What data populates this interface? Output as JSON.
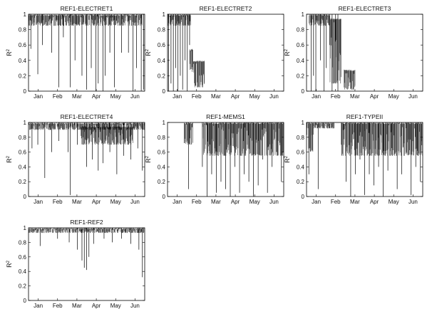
{
  "chart_data": [
    {
      "type": "line",
      "title": "REF1-ELECTRET1",
      "ylabel": "R",
      "ylabel_sup": "2",
      "ylim": [
        0,
        1
      ],
      "yticks": [
        "0",
        "0.2",
        "0.4",
        "0.6",
        "0.8",
        "1"
      ],
      "xticks": [
        "Jan",
        "Feb",
        "Mar",
        "Apr",
        "May",
        "Jun"
      ],
      "series_color": "#000000",
      "spikes": [
        [
          0.02,
          0.55
        ],
        [
          0.08,
          0.22
        ],
        [
          0.12,
          0.6
        ],
        [
          0.2,
          0.5
        ],
        [
          0.26,
          0.05
        ],
        [
          0.3,
          0.7
        ],
        [
          0.36,
          0.05
        ],
        [
          0.4,
          0.4
        ],
        [
          0.46,
          0.2
        ],
        [
          0.5,
          0.02
        ],
        [
          0.54,
          0.3
        ],
        [
          0.58,
          0.0
        ],
        [
          0.6,
          0.1
        ],
        [
          0.64,
          0.0
        ],
        [
          0.66,
          0.2
        ],
        [
          0.7,
          0.5
        ],
        [
          0.74,
          0.05
        ],
        [
          0.8,
          0.5
        ],
        [
          0.86,
          0.5
        ],
        [
          0.9,
          0.0
        ],
        [
          0.93,
          0.3
        ],
        [
          0.97,
          0.0
        ],
        [
          0.99,
          0.02
        ]
      ],
      "segments": [
        [
          0.0,
          0.98,
          0.85,
          1.0
        ]
      ],
      "gaps": []
    },
    {
      "type": "line",
      "title": "REF1-ELECTRET2",
      "ylabel": "R",
      "ylabel_sup": "2",
      "ylim": [
        0,
        1
      ],
      "yticks": [
        "0",
        "0.2",
        "0.4",
        "0.6",
        "0.8",
        "1"
      ],
      "xticks": [
        "Jan",
        "Feb",
        "Mar",
        "Apr",
        "May",
        "Jun"
      ],
      "series_color": "#000000",
      "spikes": [
        [
          0.01,
          0.0
        ],
        [
          0.03,
          0.1
        ],
        [
          0.05,
          0.0
        ],
        [
          0.07,
          0.3
        ],
        [
          0.09,
          0.0
        ],
        [
          0.11,
          0.2
        ],
        [
          0.13,
          0.02
        ],
        [
          0.15,
          0.4
        ],
        [
          0.17,
          0.0
        ],
        [
          0.19,
          0.6
        ]
      ],
      "segments": [
        [
          0.0,
          0.2,
          0.85,
          1.0
        ],
        [
          0.19,
          0.22,
          0.25,
          0.55
        ],
        [
          0.22,
          0.32,
          0.05,
          0.4
        ]
      ],
      "gaps": []
    },
    {
      "type": "line",
      "title": "REF1-ELECTRET3",
      "ylabel": "R",
      "ylabel_sup": "2",
      "ylim": [
        0,
        1
      ],
      "yticks": [
        "0",
        "0.2",
        "0.4",
        "0.6",
        "0.8",
        "1"
      ],
      "xticks": [
        "Jan",
        "Feb",
        "Mar",
        "Apr",
        "May",
        "Jun"
      ],
      "series_color": "#000000",
      "spikes": [
        [
          0.04,
          0.0
        ],
        [
          0.06,
          0.2
        ],
        [
          0.08,
          0.0
        ],
        [
          0.12,
          0.4
        ],
        [
          0.15,
          0.0
        ],
        [
          0.17,
          0.3
        ],
        [
          0.2,
          0.6
        ],
        [
          0.22,
          0.0
        ],
        [
          0.25,
          0.1
        ],
        [
          0.27,
          0.0
        ]
      ],
      "segments": [
        [
          0.02,
          0.2,
          0.85,
          1.0
        ],
        [
          0.2,
          0.3,
          0.1,
          0.95
        ],
        [
          0.32,
          0.42,
          0.02,
          0.28
        ]
      ],
      "gaps": []
    },
    {
      "type": "line",
      "title": "REF1-ELECTRET4",
      "ylabel": "R",
      "ylabel_sup": "2",
      "ylim": [
        0,
        1
      ],
      "yticks": [
        "0",
        "0.2",
        "0.4",
        "0.6",
        "0.8",
        "1"
      ],
      "xticks": [
        "Jan",
        "Feb",
        "Mar",
        "Apr",
        "May",
        "Jun"
      ],
      "series_color": "#000000",
      "spikes": [
        [
          0.03,
          0.65
        ],
        [
          0.08,
          0.7
        ],
        [
          0.14,
          0.25
        ],
        [
          0.2,
          0.6
        ],
        [
          0.26,
          0.75
        ],
        [
          0.34,
          0.6
        ],
        [
          0.36,
          0.02
        ],
        [
          0.42,
          0.7
        ],
        [
          0.5,
          0.4
        ],
        [
          0.55,
          0.5
        ],
        [
          0.6,
          0.35
        ],
        [
          0.64,
          0.45
        ],
        [
          0.7,
          0.6
        ],
        [
          0.76,
          0.3
        ],
        [
          0.82,
          0.55
        ],
        [
          0.88,
          0.5
        ],
        [
          0.94,
          0.65
        ],
        [
          0.98,
          0.35
        ]
      ],
      "segments": [
        [
          0.0,
          1.0,
          0.9,
          1.0
        ],
        [
          0.45,
          0.9,
          0.7,
          0.95
        ]
      ],
      "gaps": []
    },
    {
      "type": "line",
      "title": "REF1-MEMS1",
      "ylabel": "R",
      "ylabel_sup": "2",
      "ylim": [
        0,
        1
      ],
      "yticks": [
        "0",
        "0.2",
        "0.4",
        "0.6",
        "0.8",
        "1"
      ],
      "xticks": [
        "Jan",
        "Feb",
        "Mar",
        "Apr",
        "May",
        "Jun"
      ],
      "series_color": "#000000",
      "spikes": [
        [
          0.18,
          0.1
        ],
        [
          0.3,
          0.4
        ],
        [
          0.34,
          0.0
        ],
        [
          0.38,
          0.3
        ],
        [
          0.42,
          0.05
        ],
        [
          0.46,
          0.2
        ],
        [
          0.5,
          0.1
        ],
        [
          0.54,
          0.0
        ],
        [
          0.58,
          0.4
        ],
        [
          0.62,
          0.05
        ],
        [
          0.66,
          0.3
        ],
        [
          0.7,
          0.2
        ],
        [
          0.74,
          0.0
        ],
        [
          0.78,
          0.15
        ],
        [
          0.82,
          0.5
        ],
        [
          0.86,
          0.05
        ],
        [
          0.9,
          0.4
        ],
        [
          0.94,
          0.6
        ],
        [
          0.98,
          0.2
        ]
      ],
      "segments": [
        [
          0.14,
          0.22,
          0.7,
          1.0
        ],
        [
          0.3,
          1.0,
          0.55,
          1.0
        ]
      ],
      "gaps": [
        [
          0.0,
          0.14
        ],
        [
          0.22,
          0.3
        ]
      ]
    },
    {
      "type": "line",
      "title": "REF1-TYPEII",
      "ylabel": "R",
      "ylabel_sup": "2",
      "ylim": [
        0,
        1
      ],
      "yticks": [
        "0",
        "0.2",
        "0.4",
        "0.6",
        "0.8",
        "1"
      ],
      "xticks": [
        "Jan",
        "Feb",
        "Mar",
        "Apr",
        "May",
        "Jun"
      ],
      "series_color": "#000000",
      "spikes": [
        [
          0.02,
          0.3
        ],
        [
          0.1,
          0.1
        ],
        [
          0.3,
          0.7
        ],
        [
          0.34,
          0.2
        ],
        [
          0.38,
          0.0
        ],
        [
          0.42,
          0.3
        ],
        [
          0.46,
          0.5
        ],
        [
          0.5,
          0.02
        ],
        [
          0.54,
          0.3
        ],
        [
          0.58,
          0.15
        ],
        [
          0.62,
          0.4
        ],
        [
          0.66,
          0.0
        ],
        [
          0.7,
          0.35
        ],
        [
          0.74,
          0.55
        ],
        [
          0.78,
          0.1
        ],
        [
          0.82,
          0.3
        ],
        [
          0.86,
          0.6
        ],
        [
          0.9,
          0.02
        ],
        [
          0.94,
          0.4
        ],
        [
          0.98,
          0.2
        ]
      ],
      "segments": [
        [
          0.0,
          0.06,
          0.6,
          1.0
        ],
        [
          0.06,
          0.24,
          0.92,
          1.0
        ],
        [
          0.3,
          1.0,
          0.55,
          1.0
        ]
      ],
      "gaps": [
        [
          0.24,
          0.3
        ]
      ]
    },
    {
      "type": "line",
      "title": "REF1-REF2",
      "ylabel": "R",
      "ylabel_sup": "2",
      "ylim": [
        0,
        1
      ],
      "yticks": [
        "0",
        "0.2",
        "0.4",
        "0.6",
        "0.8",
        "1"
      ],
      "xticks": [
        "Jan",
        "Feb",
        "Mar",
        "Apr",
        "May",
        "Jun"
      ],
      "series_color": "#000000",
      "spikes": [
        [
          0.1,
          0.75
        ],
        [
          0.25,
          0.85
        ],
        [
          0.35,
          0.8
        ],
        [
          0.42,
          0.7
        ],
        [
          0.46,
          0.55
        ],
        [
          0.48,
          0.45
        ],
        [
          0.5,
          0.42
        ],
        [
          0.52,
          0.6
        ],
        [
          0.56,
          0.78
        ],
        [
          0.65,
          0.85
        ],
        [
          0.72,
          0.8
        ],
        [
          0.8,
          0.85
        ],
        [
          0.88,
          0.78
        ],
        [
          0.95,
          0.7
        ],
        [
          0.98,
          0.32
        ]
      ],
      "segments": [
        [
          0.0,
          1.0,
          0.93,
          1.0
        ]
      ],
      "gaps": []
    }
  ]
}
